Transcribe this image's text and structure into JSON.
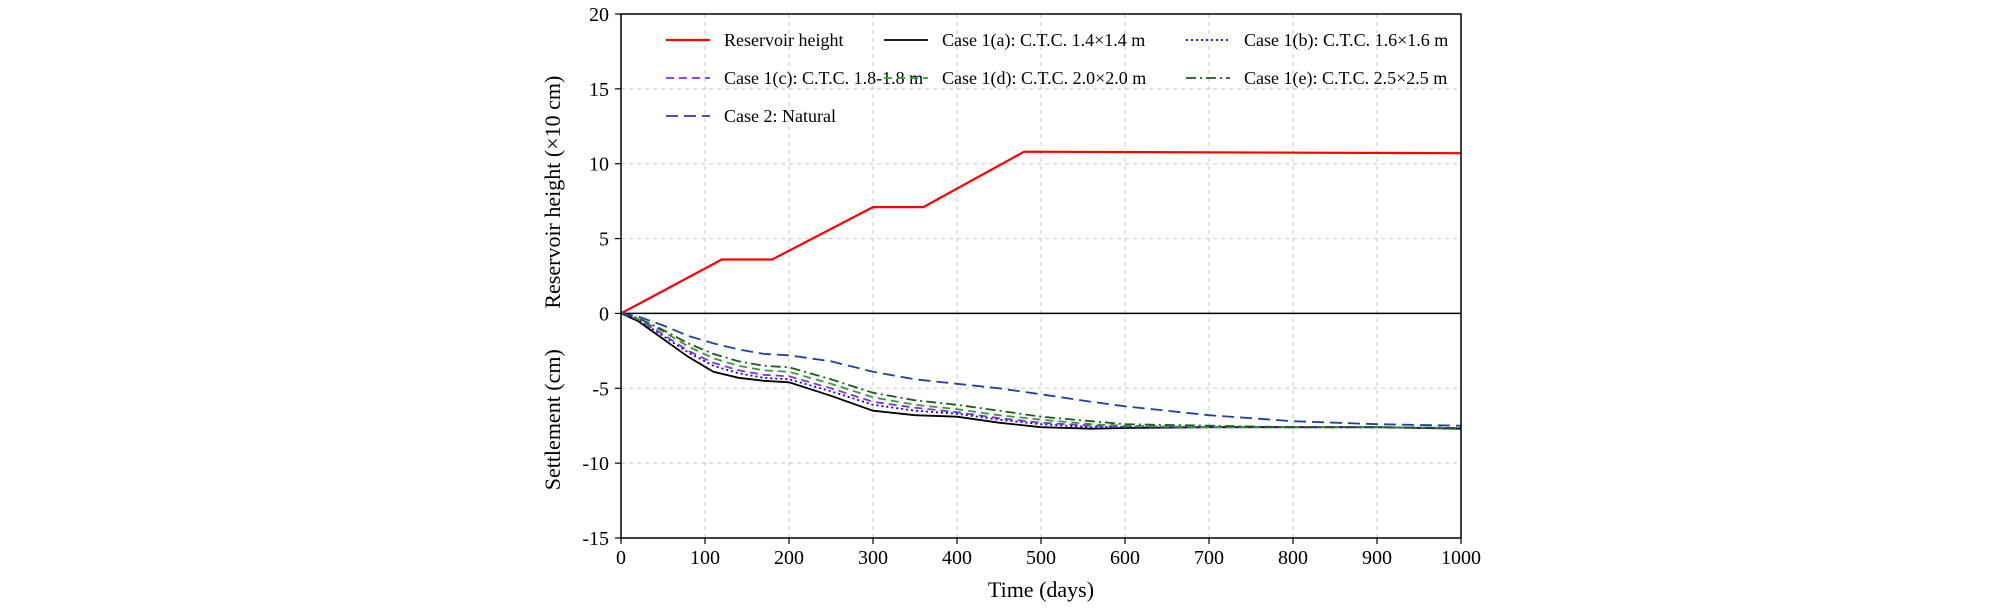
{
  "chart_data": {
    "type": "line",
    "title": "",
    "xlabel": "Time (days)",
    "ylabel_upper": "Reservoir height (×10 cm)",
    "ylabel_lower": "Settlement (cm)",
    "xlim": [
      0,
      1000
    ],
    "ylim": [
      -15,
      20
    ],
    "x_ticks": [
      0,
      100,
      200,
      300,
      400,
      500,
      600,
      700,
      800,
      900,
      1000
    ],
    "y_ticks": [
      20,
      15,
      10,
      5,
      0,
      -5,
      -10,
      -15
    ],
    "grid": true,
    "legend_position": "top",
    "series": [
      {
        "name": "Reservoir height",
        "color": "#ff0000",
        "dash": "solid",
        "x": [
          0,
          30,
          120,
          180,
          300,
          360,
          480,
          1010
        ],
        "y": [
          0,
          0.9,
          3.6,
          3.6,
          7.1,
          7.1,
          10.8,
          10.7
        ]
      },
      {
        "name": "Case 1(a): C.T.C. 1.4×1.4 m",
        "color": "#000000",
        "dash": "solid",
        "x": [
          0,
          20,
          50,
          80,
          110,
          140,
          170,
          200,
          250,
          300,
          350,
          400,
          450,
          500,
          560,
          600,
          700,
          800,
          900,
          1010
        ],
        "y": [
          0,
          -0.5,
          -1.7,
          -2.9,
          -3.9,
          -4.3,
          -4.5,
          -4.6,
          -5.5,
          -6.5,
          -6.8,
          -6.9,
          -7.3,
          -7.6,
          -7.7,
          -7.65,
          -7.6,
          -7.6,
          -7.6,
          -7.7
        ]
      },
      {
        "name": "Case 1(b): C.T.C. 1.6×1.6 m",
        "color": "#0000ff",
        "dash": "dotted",
        "x": [
          0,
          20,
          50,
          80,
          110,
          140,
          170,
          200,
          250,
          300,
          350,
          400,
          450,
          500,
          560,
          600,
          700,
          800,
          900,
          1010
        ],
        "y": [
          0,
          -0.4,
          -1.5,
          -2.6,
          -3.5,
          -4.0,
          -4.3,
          -4.4,
          -5.2,
          -6.1,
          -6.5,
          -6.7,
          -7.1,
          -7.4,
          -7.6,
          -7.6,
          -7.6,
          -7.6,
          -7.6,
          -7.65
        ]
      },
      {
        "name": "Case 1(c): C.T.C. 1.8-1.8 m",
        "color": "#8a2be2",
        "dash": "dashed",
        "x": [
          0,
          20,
          50,
          80,
          110,
          140,
          170,
          200,
          250,
          300,
          350,
          400,
          450,
          500,
          560,
          600,
          700,
          800,
          900,
          1010
        ],
        "y": [
          0,
          -0.4,
          -1.4,
          -2.5,
          -3.3,
          -3.8,
          -4.1,
          -4.2,
          -5.0,
          -5.9,
          -6.3,
          -6.6,
          -7.0,
          -7.3,
          -7.5,
          -7.55,
          -7.6,
          -7.6,
          -7.6,
          -7.65
        ]
      },
      {
        "name": "Case 1(d): C.T.C. 2.0×2.0 m",
        "color": "#2ca02c",
        "dash": "dashed",
        "x": [
          0,
          20,
          50,
          80,
          110,
          140,
          170,
          200,
          250,
          300,
          350,
          400,
          450,
          500,
          560,
          600,
          700,
          800,
          900,
          1010
        ],
        "y": [
          0,
          -0.35,
          -1.2,
          -2.2,
          -3.0,
          -3.5,
          -3.8,
          -3.9,
          -4.7,
          -5.6,
          -6.1,
          -6.4,
          -6.8,
          -7.1,
          -7.4,
          -7.5,
          -7.6,
          -7.6,
          -7.6,
          -7.65
        ]
      },
      {
        "name": "Case 1(e): C.T.C. 2.5×2.5 m",
        "color": "#1e5a1e",
        "dash": "dashdot",
        "x": [
          0,
          20,
          50,
          80,
          110,
          140,
          170,
          200,
          250,
          300,
          350,
          400,
          450,
          500,
          560,
          600,
          700,
          800,
          900,
          1010
        ],
        "y": [
          0,
          -0.3,
          -1.1,
          -2.0,
          -2.7,
          -3.2,
          -3.5,
          -3.6,
          -4.4,
          -5.3,
          -5.8,
          -6.1,
          -6.5,
          -6.9,
          -7.2,
          -7.4,
          -7.5,
          -7.6,
          -7.6,
          -7.65
        ]
      },
      {
        "name": "Case 2: Natural",
        "color": "#1f3fa6",
        "dash": "longdash",
        "x": [
          0,
          20,
          50,
          80,
          110,
          140,
          170,
          200,
          250,
          300,
          350,
          400,
          450,
          500,
          560,
          600,
          700,
          800,
          900,
          1010
        ],
        "y": [
          0,
          -0.2,
          -0.8,
          -1.5,
          -2.0,
          -2.4,
          -2.7,
          -2.8,
          -3.2,
          -3.9,
          -4.4,
          -4.7,
          -5.0,
          -5.4,
          -5.9,
          -6.2,
          -6.8,
          -7.2,
          -7.4,
          -7.5
        ]
      }
    ]
  }
}
